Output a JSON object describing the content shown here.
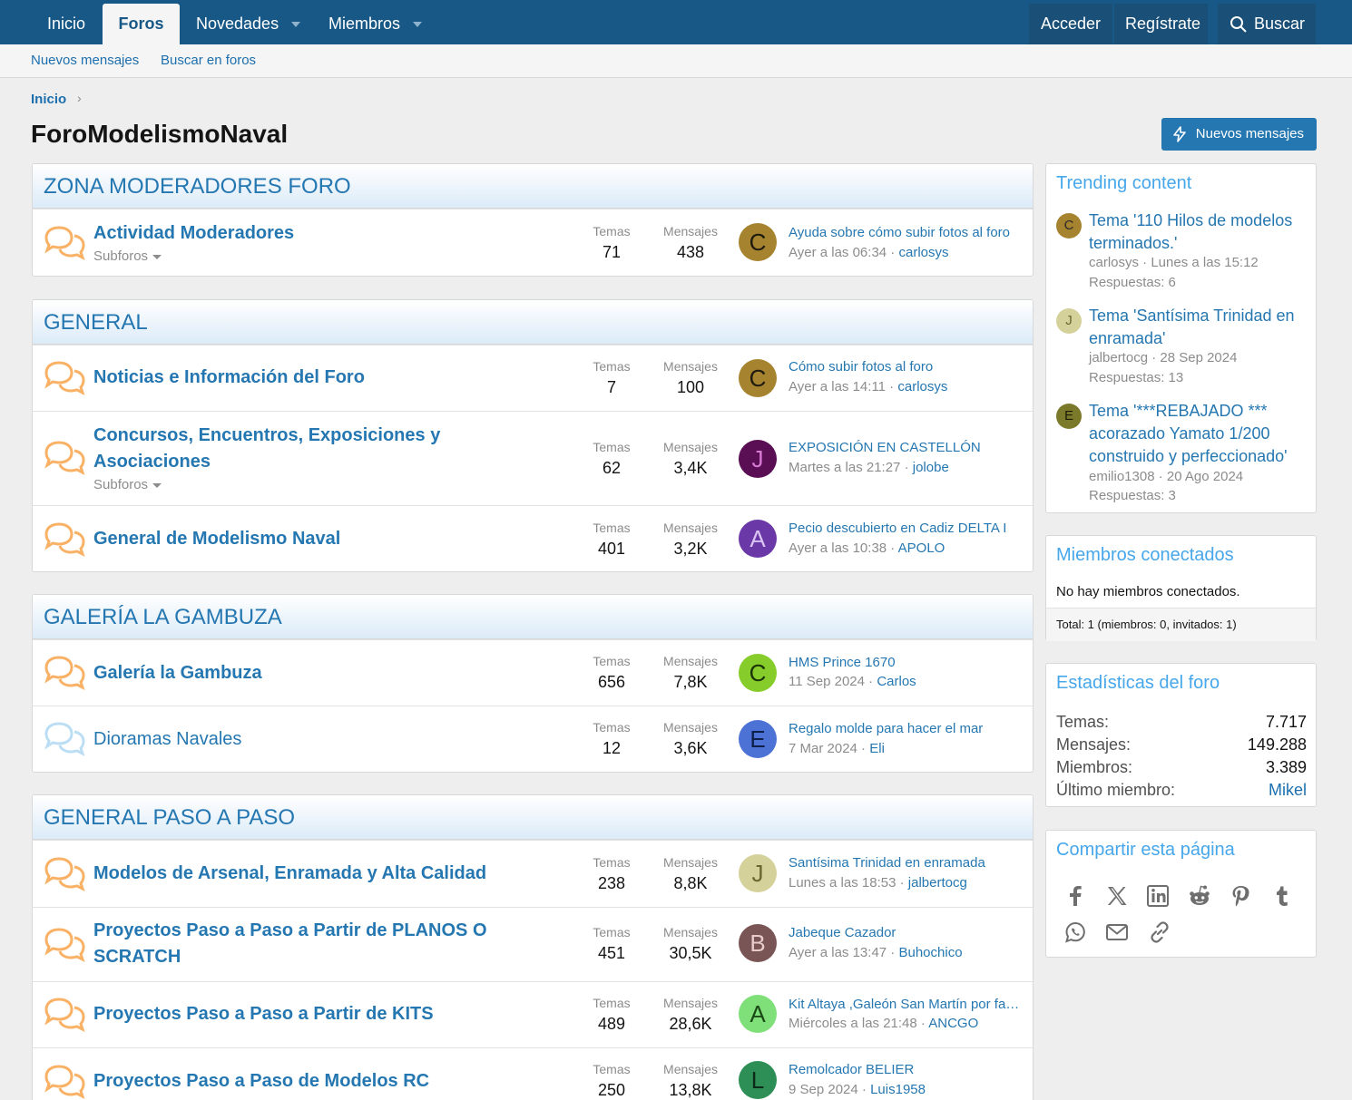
{
  "nav": {
    "tabs": [
      {
        "label": "Inicio"
      },
      {
        "label": "Foros"
      },
      {
        "label": "Novedades"
      },
      {
        "label": "Miembros"
      }
    ],
    "login": "Acceder",
    "register": "Regístrate",
    "search": "Buscar"
  },
  "subnav": {
    "new_posts": "Nuevos mensajes",
    "search_forums": "Buscar en foros"
  },
  "breadcrumb": {
    "home": "Inicio"
  },
  "page": {
    "title": "ForoModelismoNaval",
    "new_posts_button": "Nuevos mensajes"
  },
  "labels": {
    "threads": "Temas",
    "messages": "Mensajes",
    "subforums": "Subforos"
  },
  "categories": [
    {
      "title": "ZONA MODERADORES FORO",
      "forums": [
        {
          "title": "Actividad Moderadores",
          "threads": "71",
          "messages": "438",
          "last_title": "Ayuda sobre cómo subir fotos al foro",
          "last_time": "Ayer a las 06:34",
          "last_user": "carlosys",
          "avatar_letter": "C"
        }
      ]
    },
    {
      "title": "GENERAL",
      "forums": [
        {
          "title": "Noticias e Información del Foro",
          "threads": "7",
          "messages": "100",
          "last_title": "Cómo subir fotos al foro",
          "last_time": "Ayer a las 14:11",
          "last_user": "carlosys",
          "avatar_letter": "C"
        },
        {
          "title": "Concursos, Encuentros, Exposiciones y Asociaciones",
          "threads": "62",
          "messages": "3,4K",
          "last_title": "EXPOSICIÓN EN CASTELLÓN",
          "last_time": "Martes a las 21:27",
          "last_user": "jolobe",
          "avatar_letter": "J"
        },
        {
          "title": "General de Modelismo Naval",
          "threads": "401",
          "messages": "3,2K",
          "last_title": "Pecio descubierto en Cadiz DELTA I",
          "last_time": "Ayer a las 10:38",
          "last_user": "APOLO",
          "avatar_letter": "A"
        }
      ]
    },
    {
      "title": "GALERÍA LA GAMBUZA",
      "forums": [
        {
          "title": "Galería la Gambuza",
          "threads": "656",
          "messages": "7,8K",
          "last_title": "HMS Prince 1670",
          "last_time": "11 Sep 2024",
          "last_user": "Carlos",
          "avatar_letter": "C"
        },
        {
          "title": "Dioramas Navales",
          "threads": "12",
          "messages": "3,6K",
          "last_title": "Regalo molde para hacer el mar",
          "last_time": "7 Mar 2024",
          "last_user": "Eli",
          "avatar_letter": "E"
        }
      ]
    },
    {
      "title": "GENERAL PASO A PASO",
      "forums": [
        {
          "title": "Modelos de Arsenal, Enramada y Alta Calidad",
          "threads": "238",
          "messages": "8,8K",
          "last_title": "Santísima Trinidad en enramada",
          "last_time": "Lunes a las 18:53",
          "last_user": "jalbertocg",
          "avatar_letter": "J"
        },
        {
          "title": "Proyectos Paso a Paso a Partir de PLANOS O SCRATCH",
          "threads": "451",
          "messages": "30,5K",
          "last_title": "Jabeque Cazador",
          "last_time": "Ayer a las 13:47",
          "last_user": "Buhochico",
          "avatar_letter": "B"
        },
        {
          "title": "Proyectos Paso a Paso a Partir de KITS",
          "threads": "489",
          "messages": "28,6K",
          "last_title": "Kit Altaya ,Galeón San Martín por fascículos",
          "last_time": "Miércoles a las 21:48",
          "last_user": "ANCGO",
          "avatar_letter": "A"
        },
        {
          "title": "Proyectos Paso a Paso de Modelos RC",
          "threads": "250",
          "messages": "13,8K",
          "last_title": "Remolcador BELIER",
          "last_time": "9 Sep 2024",
          "last_user": "Luis1958",
          "avatar_letter": "L"
        }
      ]
    }
  ],
  "trending": {
    "title": "Trending content",
    "items": [
      {
        "title": "Tema '110 Hilos de modelos terminados.'",
        "meta": "carlosys · Lunes a las 15:12",
        "replies": "Respuestas: 6",
        "avatar_letter": "C"
      },
      {
        "title": "Tema 'Santísima Trinidad en enramada'",
        "meta": "jalbertocg · 28 Sep 2024",
        "replies": "Respuestas: 13",
        "avatar_letter": "J"
      },
      {
        "title": "Tema '***REBAJADO *** acorazado Yamato 1/200 construido y perfeccionado'",
        "meta": "emilio1308 · 20 Ago 2024",
        "replies": "Respuestas: 3",
        "avatar_letter": "E"
      }
    ]
  },
  "online": {
    "title": "Miembros conectados",
    "text": "No hay miembros conectados.",
    "total": "Total: 1 (miembros: 0, invitados: 1)"
  },
  "stats": {
    "title": "Estadísticas del foro",
    "rows": [
      {
        "label": "Temas:",
        "value": "7.717"
      },
      {
        "label": "Mensajes:",
        "value": "149.288"
      },
      {
        "label": "Miembros:",
        "value": "3.389"
      },
      {
        "label": "Último miembro:",
        "value": "Mikel"
      }
    ]
  },
  "share": {
    "title": "Compartir esta página",
    "icons": [
      "facebook-icon",
      "x-icon",
      "linkedin-icon",
      "reddit-icon",
      "pinterest-icon",
      "tumblr-icon",
      "whatsapp-icon",
      "email-icon",
      "link-icon"
    ]
  },
  "colors": {
    "nav": "#185886",
    "link": "#2577b1",
    "sidebar_heading": "#47a7eb",
    "unread_icon": "#f9b165",
    "read_icon": "#bcdef5"
  }
}
